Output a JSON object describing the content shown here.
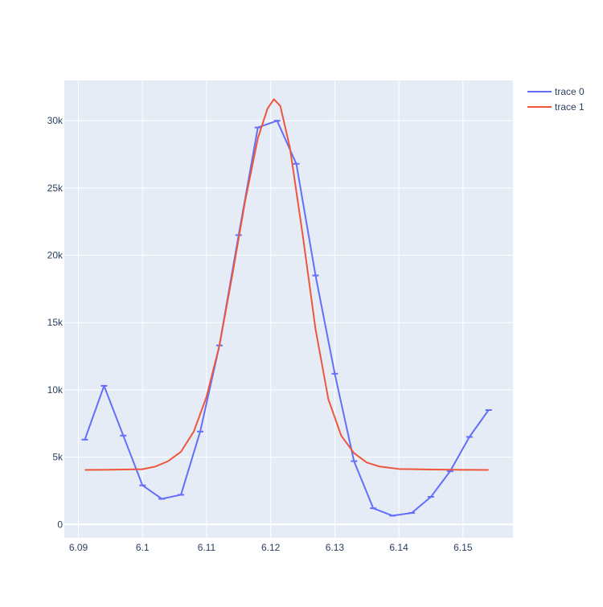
{
  "chart_data": {
    "type": "line",
    "xlim": [
      6.0878,
      6.1578
    ],
    "ylim": [
      -1000,
      33000
    ],
    "x_ticks": [
      6.09,
      6.1,
      6.11,
      6.12,
      6.13,
      6.14,
      6.15
    ],
    "x_tick_labels": [
      "6.09",
      "6.1",
      "6.11",
      "6.12",
      "6.13",
      "6.14",
      "6.15"
    ],
    "y_ticks": [
      0,
      5000,
      10000,
      15000,
      20000,
      25000,
      30000
    ],
    "y_tick_labels": [
      "0",
      "5k",
      "10k",
      "15k",
      "20k",
      "25k",
      "30k"
    ],
    "grid": true,
    "legend_position": "top-right",
    "background_color": "#e5ecf6",
    "series": [
      {
        "name": "trace 0",
        "color": "#636efa",
        "mode": "lines+error-bars",
        "x": [
          6.091,
          6.094,
          6.097,
          6.1,
          6.103,
          6.106,
          6.109,
          6.112,
          6.115,
          6.118,
          6.121,
          6.124,
          6.127,
          6.13,
          6.133,
          6.136,
          6.139,
          6.142,
          6.145,
          6.148,
          6.151,
          6.154
        ],
        "y": [
          6300,
          10300,
          6600,
          2900,
          1900,
          2200,
          6900,
          13300,
          21500,
          29500,
          30000,
          26800,
          18500,
          11200,
          4700,
          1200,
          650,
          850,
          2050,
          3950,
          6500,
          8500
        ]
      },
      {
        "name": "trace 1",
        "color": "#ef553b",
        "mode": "lines",
        "x": [
          6.091,
          6.094,
          6.097,
          6.1,
          6.102,
          6.104,
          6.106,
          6.108,
          6.11,
          6.112,
          6.114,
          6.116,
          6.118,
          6.1195,
          6.1205,
          6.1215,
          6.123,
          6.125,
          6.127,
          6.129,
          6.131,
          6.133,
          6.135,
          6.137,
          6.14,
          6.145,
          6.15,
          6.154
        ],
        "y": [
          4050,
          4060,
          4080,
          4100,
          4300,
          4700,
          5400,
          6900,
          9500,
          13300,
          18500,
          24000,
          28700,
          30900,
          31600,
          31100,
          28000,
          21500,
          14500,
          9300,
          6600,
          5300,
          4600,
          4300,
          4120,
          4080,
          4060,
          4050
        ]
      }
    ]
  }
}
